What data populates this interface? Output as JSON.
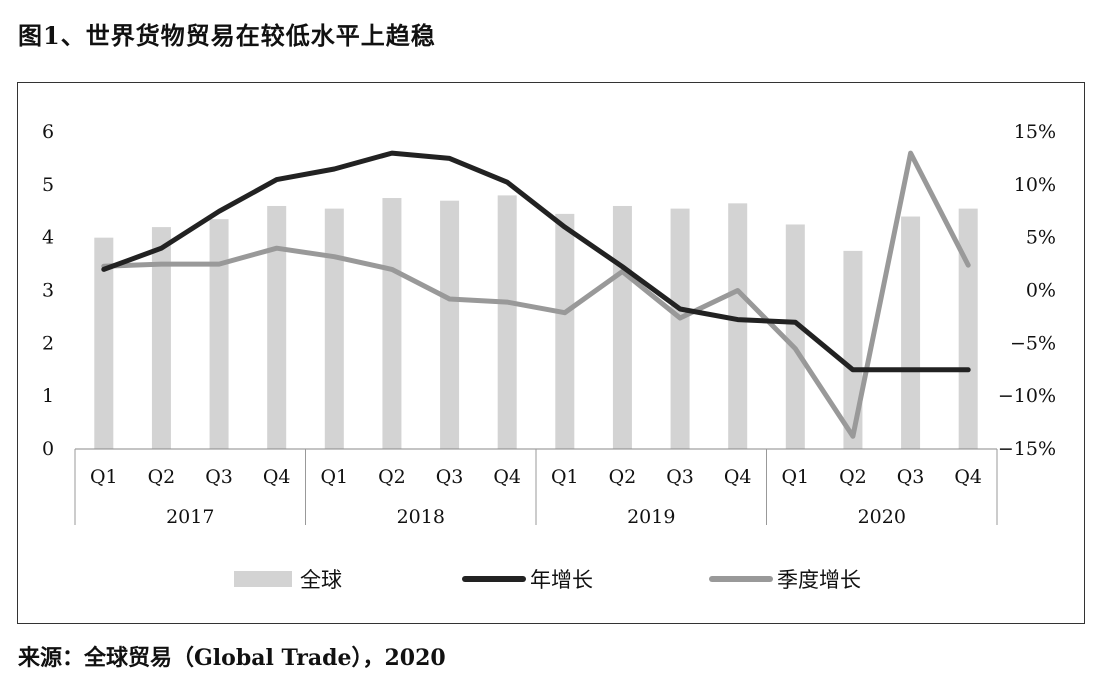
{
  "figure": {
    "title": "图1、世界货物贸易在较低水平上趋稳",
    "source": "来源：全球贸易（Global Trade），2020"
  },
  "chart_data": {
    "type": "bar+line",
    "title": "图1、世界货物贸易在较低水平上趋稳",
    "quarters": [
      "Q1",
      "Q2",
      "Q3",
      "Q4",
      "Q1",
      "Q2",
      "Q3",
      "Q4",
      "Q1",
      "Q2",
      "Q3",
      "Q4",
      "Q1",
      "Q2",
      "Q3",
      "Q4"
    ],
    "years": [
      "2017",
      "2018",
      "2019",
      "2020"
    ],
    "left_axis": {
      "ylim": [
        0,
        6
      ],
      "ticks": [
        "0",
        "1",
        "2",
        "3",
        "4",
        "5",
        "6"
      ]
    },
    "right_axis": {
      "ylim": [
        -15,
        15
      ],
      "ticks": [
        "−15%",
        "−10%",
        "−5%",
        "0%",
        "5%",
        "10%",
        "15%"
      ]
    },
    "series": [
      {
        "name": "全球",
        "kind": "bar",
        "axis": "left",
        "color": "#d3d3d3",
        "values": [
          4.0,
          4.2,
          4.35,
          4.6,
          4.55,
          4.75,
          4.7,
          4.8,
          4.45,
          4.6,
          4.55,
          4.65,
          4.25,
          3.75,
          4.4,
          4.55
        ]
      },
      {
        "name": "年增长",
        "kind": "line",
        "axis": "left",
        "color": "#222222",
        "values": [
          3.4,
          3.8,
          4.5,
          5.1,
          5.3,
          5.6,
          5.5,
          5.05,
          4.2,
          3.45,
          2.65,
          2.45,
          2.4,
          1.5,
          1.5,
          1.5
        ]
      },
      {
        "name": "季度增长",
        "kind": "line",
        "axis": "right",
        "color": "#999999",
        "values": [
          2.3,
          2.5,
          2.5,
          4.0,
          3.2,
          2.0,
          -0.8,
          -1.1,
          -2.1,
          1.8,
          -2.6,
          0.0,
          -5.5,
          -13.8,
          13.0,
          2.4
        ]
      }
    ],
    "legend": [
      "全球",
      "年增长",
      "季度增长"
    ],
    "legend_position": "bottom"
  }
}
